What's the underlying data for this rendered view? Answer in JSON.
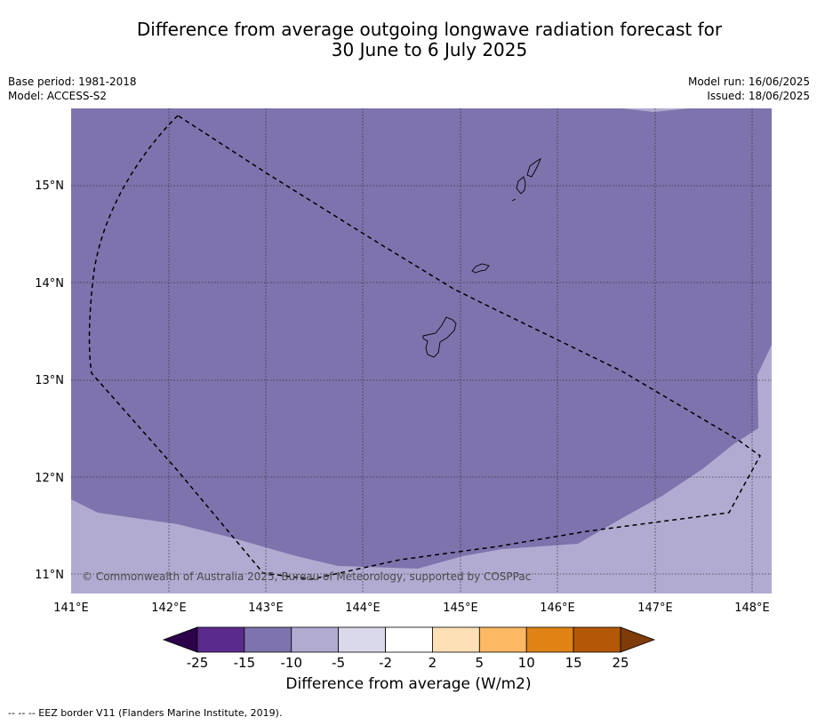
{
  "title_line1": "Difference from average outgoing longwave radiation forecast for",
  "title_line2": "30 June to 6 July 2025",
  "base_period": "Base period: 1981-2018",
  "model": "Model: ACCESS-S2",
  "model_run": "Model run: 16/06/2025",
  "issued": "Issued: 18/06/2025",
  "copyright": "© Commonwealth of Australia 2025, Bureau of Meteorology, supported by COSPPac",
  "x_ticks": [
    "141°E",
    "142°E",
    "143°E",
    "144°E",
    "145°E",
    "146°E",
    "147°E",
    "148°E"
  ],
  "y_ticks": [
    "15°N",
    "14°N",
    "13°N",
    "12°N",
    "11°N"
  ],
  "colorbar": {
    "title": "Difference from average (W/m2)",
    "labels": [
      "-25",
      "-15",
      "-10",
      "-5",
      "-2",
      "2",
      "5",
      "10",
      "15",
      "25"
    ],
    "colors": [
      "#5a2a8c",
      "#7f73ad",
      "#b1abd1",
      "#dad9eb",
      "#ffffff",
      "#fde0b5",
      "#fdb863",
      "#e08214",
      "#b35806"
    ],
    "under_color": "#2d004b",
    "over_color": "#7f3b08"
  },
  "legend_note": "-- -- -- EEZ border V11 (Flanders Marine Institute, 2019).",
  "map_colors": {
    "main_anomaly": "#7f73ad",
    "south_anomaly": "#b1abd1"
  }
}
